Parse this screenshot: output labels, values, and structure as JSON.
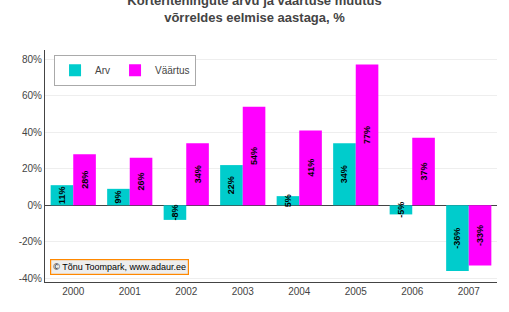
{
  "chart_data": {
    "type": "bar",
    "title": "Korteritehingute arvu ja väärtuse muutus\nvõrreldes eelmise aastaga, %",
    "categories": [
      "2000",
      "2001",
      "2002",
      "2003",
      "2004",
      "2005",
      "2006",
      "2007"
    ],
    "series": [
      {
        "name": "Arv",
        "color": "#00CCCC",
        "values": [
          11,
          9,
          -8,
          22,
          5,
          34,
          -5,
          -36
        ],
        "value_labels": [
          "11%",
          "9%",
          "-8%",
          "22%",
          "5%",
          "34%",
          "-5%",
          "-36%"
        ]
      },
      {
        "name": "Väärtus",
        "color": "#FF00FF",
        "values": [
          28,
          26,
          34,
          54,
          41,
          77,
          37,
          -33
        ],
        "value_labels": [
          "28%",
          "26%",
          "34%",
          "54%",
          "41%",
          "77%",
          "37%",
          "-33%"
        ]
      }
    ],
    "ylim": [
      -42,
      85
    ],
    "yticks": [
      {
        "value": -40,
        "label": "-40%"
      },
      {
        "value": -20,
        "label": "-20%"
      },
      {
        "value": 0,
        "label": "0%"
      },
      {
        "value": 20,
        "label": "20%"
      },
      {
        "value": 40,
        "label": "40%"
      },
      {
        "value": 60,
        "label": "60%"
      },
      {
        "value": 80,
        "label": "80%"
      }
    ],
    "grid": true,
    "legend": "upper left",
    "data_labels": true,
    "annotations": [
      "© Tõnu Toompark, www.adaur.ee"
    ]
  }
}
